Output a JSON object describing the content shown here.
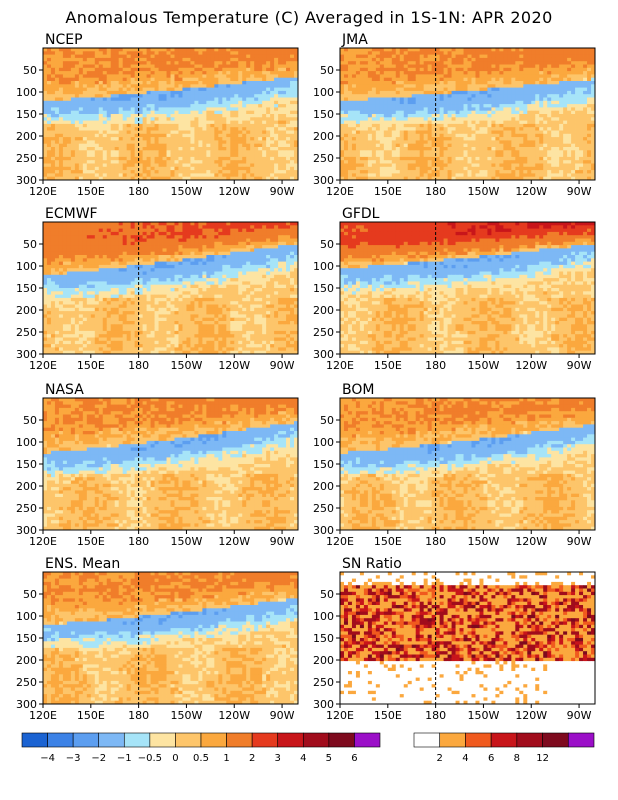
{
  "title": "Anomalous Temperature (C) Averaged in 1S-1N: APR 2020",
  "colors": {
    "anomaly_levels": [
      "#1b63d2",
      "#3c82e6",
      "#5c9ef0",
      "#7db8f5",
      "#a6e4f8",
      "#fde4a2",
      "#fdc56a",
      "#fba83e",
      "#f07d2a",
      "#e53a1e",
      "#c8151a",
      "#a10c1c",
      "#7e0a1e",
      "#9b0fc8"
    ],
    "sn_levels": [
      "#ffffff",
      "#fba83e",
      "#f05a1e",
      "#c8151a",
      "#a10c1c",
      "#7e0a1e",
      "#9b0fc8"
    ]
  },
  "chart_data": [
    {
      "type": "heatmap",
      "panel": "NCEP",
      "xlabel": "",
      "ylabel": "",
      "x_ticks": [
        "120E",
        "150E",
        "180",
        "150W",
        "120W",
        "90W"
      ],
      "y_ticks": [
        "50",
        "100",
        "150",
        "200",
        "250",
        "300"
      ],
      "ylim": [
        300,
        0
      ],
      "xlim_deg_east": [
        120,
        280
      ],
      "dateline_marker": "180",
      "features": {
        "thermocline_depth_west": 120,
        "thermocline_depth_east": 65,
        "cold_core_min": -2,
        "warm_surface_max": 1
      }
    },
    {
      "type": "heatmap",
      "panel": "JMA",
      "x_ticks": [
        "120E",
        "150E",
        "180",
        "150W",
        "120W",
        "90W"
      ],
      "y_ticks": [
        "50",
        "100",
        "150",
        "200",
        "250",
        "300"
      ],
      "ylim": [
        300,
        0
      ],
      "xlim_deg_east": [
        120,
        280
      ],
      "features": {
        "thermocline_depth_west": 120,
        "thermocline_depth_east": 70,
        "cold_core_min": -2,
        "warm_surface_max": 1
      }
    },
    {
      "type": "heatmap",
      "panel": "ECMWF",
      "x_ticks": [
        "120E",
        "150E",
        "180",
        "150W",
        "120W",
        "90W"
      ],
      "y_ticks": [
        "50",
        "100",
        "150",
        "200",
        "250",
        "300"
      ],
      "ylim": [
        300,
        0
      ],
      "xlim_deg_east": [
        120,
        280
      ],
      "features": {
        "thermocline_depth_west": 120,
        "thermocline_depth_east": 50,
        "cold_core_min": -2,
        "warm_surface_max": 2
      }
    },
    {
      "type": "heatmap",
      "panel": "GFDL",
      "x_ticks": [
        "120E",
        "150E",
        "180",
        "150W",
        "120W",
        "90W"
      ],
      "y_ticks": [
        "50",
        "100",
        "150",
        "200",
        "250",
        "300"
      ],
      "ylim": [
        300,
        0
      ],
      "xlim_deg_east": [
        120,
        280
      ],
      "features": {
        "thermocline_depth_west": 105,
        "thermocline_depth_east": 50,
        "cold_core_min": -2,
        "warm_surface_max": 3
      }
    },
    {
      "type": "heatmap",
      "panel": "NASA",
      "x_ticks": [
        "120E",
        "150E",
        "180",
        "150W",
        "120W",
        "90W"
      ],
      "y_ticks": [
        "50",
        "100",
        "150",
        "200",
        "250",
        "300"
      ],
      "ylim": [
        300,
        0
      ],
      "xlim_deg_east": [
        120,
        280
      ],
      "features": {
        "thermocline_depth_west": 125,
        "thermocline_depth_east": 55,
        "cold_core_min": -2,
        "warm_surface_max": 1
      }
    },
    {
      "type": "heatmap",
      "panel": "BOM",
      "x_ticks": [
        "120E",
        "150E",
        "180",
        "150W",
        "120W",
        "90W"
      ],
      "y_ticks": [
        "50",
        "100",
        "150",
        "200",
        "250",
        "300"
      ],
      "ylim": [
        300,
        0
      ],
      "xlim_deg_east": [
        120,
        280
      ],
      "features": {
        "thermocline_depth_west": 125,
        "thermocline_depth_east": 60,
        "cold_core_min": -2,
        "warm_surface_max": 1
      }
    },
    {
      "type": "heatmap",
      "panel": "ENS. Mean",
      "x_ticks": [
        "120E",
        "150E",
        "180",
        "150W",
        "120W",
        "90W"
      ],
      "y_ticks": [
        "50",
        "100",
        "150",
        "200",
        "250",
        "300"
      ],
      "ylim": [
        300,
        0
      ],
      "xlim_deg_east": [
        120,
        280
      ],
      "features": {
        "thermocline_depth_west": 120,
        "thermocline_depth_east": 60,
        "cold_core_min": -2,
        "warm_surface_max": 1
      }
    },
    {
      "type": "heatmap",
      "panel": "SN Ratio",
      "x_ticks": [
        "120E",
        "150E",
        "180",
        "150W",
        "120W",
        "90W"
      ],
      "y_ticks": [
        "50",
        "100",
        "150",
        "200",
        "250",
        "300"
      ],
      "ylim": [
        300,
        0
      ],
      "xlim_deg_east": [
        120,
        280
      ],
      "features": {
        "high_ratio_band_depth": [
          30,
          200
        ],
        "max_ratio": 12
      }
    }
  ],
  "colorbars": [
    {
      "name": "anomaly",
      "labels": [
        "-4",
        "-3",
        "-2",
        "-1",
        "-0.5",
        "0",
        "0.5",
        "1",
        "2",
        "3",
        "4",
        "5",
        "6"
      ]
    },
    {
      "name": "sn_ratio",
      "labels": [
        "2",
        "4",
        "6",
        "8",
        "12"
      ]
    }
  ]
}
